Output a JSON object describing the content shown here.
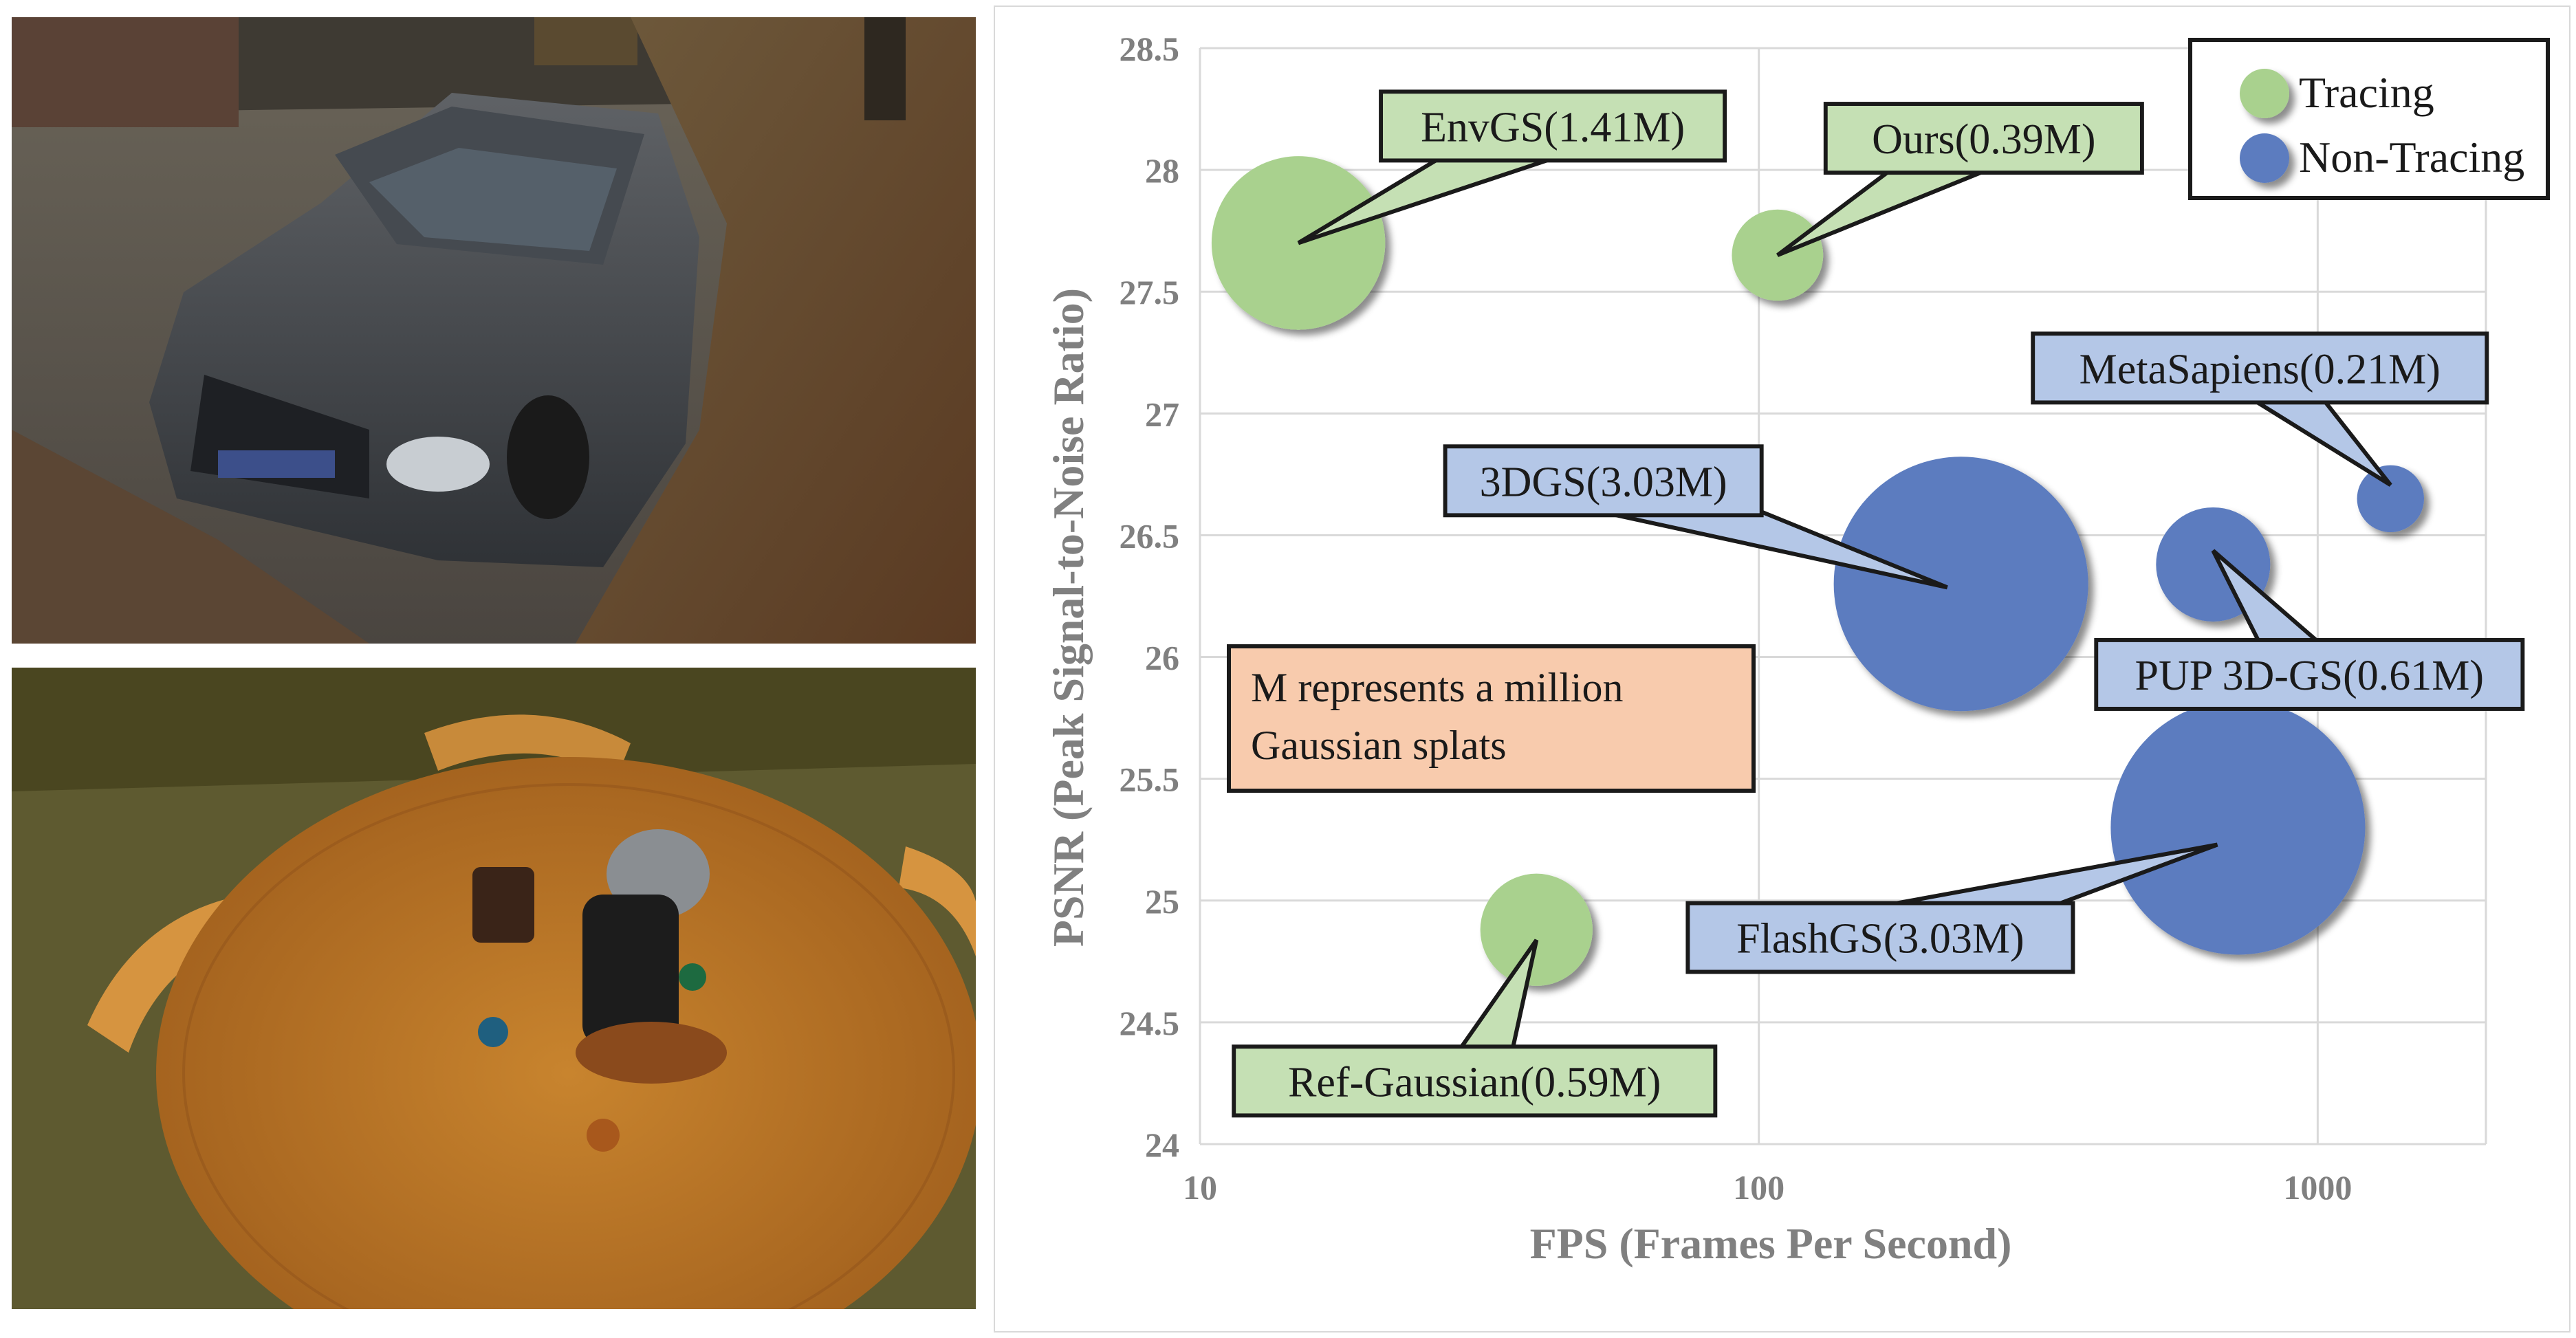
{
  "photos": [
    {
      "subject": "car on leaf-covered pavement"
    },
    {
      "subject": "round wooden table with coffee grinder and capsules"
    }
  ],
  "note": {
    "lines": [
      "M represents a million",
      "Gaussian splats"
    ],
    "fill": "#F8CBAD"
  },
  "colors": {
    "tracing_fill": "#A9D18E",
    "tracing_label": "#C5E0B4",
    "non_tracing_fill": "#5B7BBF",
    "non_tracing_label": "#B4C7E7",
    "axis_text": "#808080",
    "grid": "#d9d9d9"
  },
  "chart_data": {
    "type": "scatter",
    "subtype": "bubble",
    "xlabel": "FPS (Frames Per Second)",
    "ylabel": "PSNR (Peak Signal-to-Noise Ratio)",
    "xscale": "log",
    "xlim": [
      10,
      2000
    ],
    "ylim": [
      24,
      28.5
    ],
    "xticks": [
      "10",
      "100",
      "1000"
    ],
    "yticks": [
      "24",
      "24.5",
      "25",
      "25.5",
      "26",
      "26.5",
      "27",
      "27.5",
      "28",
      "28.5"
    ],
    "grid": true,
    "legend": {
      "position": "top-right",
      "entries": [
        "Tracing",
        "Non-Tracing"
      ]
    },
    "size_unit": "million Gaussian splats",
    "series": [
      {
        "name": "Tracing",
        "points": [
          {
            "label": "EnvGS(1.41M)",
            "x": 15,
            "y": 27.7,
            "size": 1.41
          },
          {
            "label": "Ours(0.39M)",
            "x": 108,
            "y": 27.65,
            "size": 0.39
          },
          {
            "label": "Ref-Gaussian(0.59M)",
            "x": 40,
            "y": 24.88,
            "size": 0.59
          }
        ]
      },
      {
        "name": "Non-Tracing",
        "points": [
          {
            "label": "3DGS(3.03M)",
            "x": 230,
            "y": 26.3,
            "size": 3.03
          },
          {
            "label": "MetaSapiens(0.21M)",
            "x": 1350,
            "y": 26.65,
            "size": 0.21
          },
          {
            "label": "PUP 3D-GS(0.61M)",
            "x": 650,
            "y": 26.38,
            "size": 0.61
          },
          {
            "label": "FlashGS(3.03M)",
            "x": 720,
            "y": 25.3,
            "size": 3.03
          }
        ]
      }
    ]
  }
}
